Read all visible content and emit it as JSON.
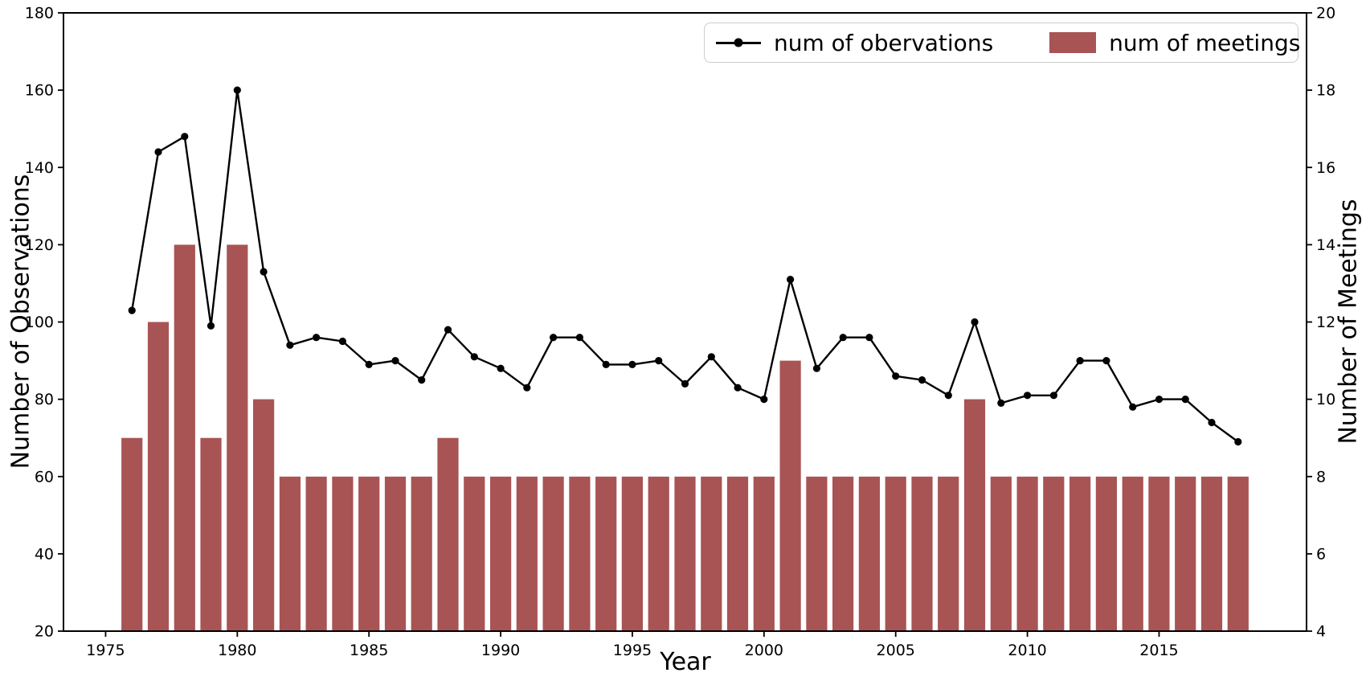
{
  "chart_data": {
    "type": "line+bar",
    "x": [
      1976,
      1977,
      1978,
      1979,
      1980,
      1981,
      1982,
      1983,
      1984,
      1985,
      1986,
      1987,
      1988,
      1989,
      1990,
      1991,
      1992,
      1993,
      1994,
      1995,
      1996,
      1997,
      1998,
      1999,
      2000,
      2001,
      2002,
      2003,
      2004,
      2005,
      2006,
      2007,
      2008,
      2009,
      2010,
      2011,
      2012,
      2013,
      2014,
      2015,
      2016,
      2017,
      2018
    ],
    "series": [
      {
        "name": "num of obervations",
        "type": "line",
        "axis": "left",
        "color": "#000000",
        "marker": "circle",
        "values": [
          103,
          144,
          148,
          99,
          160,
          113,
          94,
          96,
          95,
          89,
          90,
          85,
          98,
          91,
          88,
          83,
          96,
          96,
          89,
          89,
          90,
          84,
          91,
          83,
          80,
          111,
          88,
          96,
          96,
          86,
          85,
          81,
          100,
          79,
          81,
          81,
          90,
          90,
          78,
          80,
          80,
          74,
          69
        ]
      },
      {
        "name": "num of meetings",
        "type": "bar",
        "axis": "right",
        "color": "#a85454",
        "values": [
          9,
          12,
          14,
          9,
          14,
          10,
          8,
          8,
          8,
          8,
          8,
          8,
          9,
          8,
          8,
          8,
          8,
          8,
          8,
          8,
          8,
          8,
          8,
          8,
          8,
          11,
          8,
          8,
          8,
          8,
          8,
          8,
          10,
          8,
          8,
          8,
          8,
          8,
          8,
          8,
          8,
          8,
          8
        ]
      }
    ],
    "xlabel": "Year",
    "ylabel_left": "Number of Observations",
    "ylabel_right": "Number of Meetings",
    "xlim": [
      1973.4,
      2020.6
    ],
    "ylim_left": [
      20,
      180
    ],
    "ylim_right": [
      4,
      20
    ],
    "xticks": [
      1975,
      1980,
      1985,
      1990,
      1995,
      2000,
      2005,
      2010,
      2015
    ],
    "yticks_left": [
      20,
      40,
      60,
      80,
      100,
      120,
      140,
      160,
      180
    ],
    "yticks_right": [
      4,
      6,
      8,
      10,
      12,
      14,
      16,
      18,
      20
    ],
    "grid": false,
    "legend_position": "upper right",
    "bar_width_years": 0.8
  }
}
